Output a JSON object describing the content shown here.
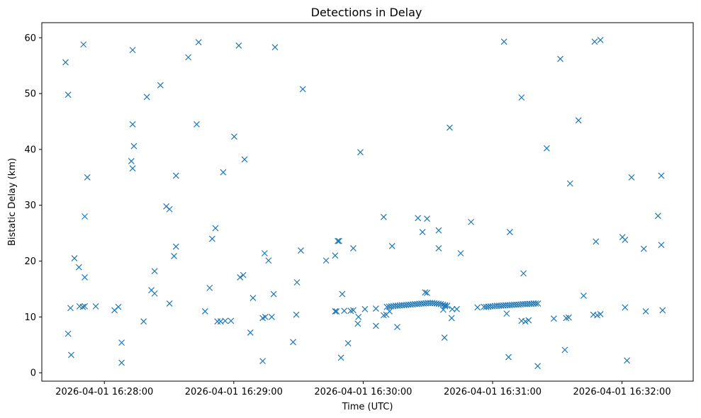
{
  "chart_data": {
    "type": "scatter",
    "title": "Detections in Delay",
    "xlabel": "Time (UTC)",
    "ylabel": "Bistatic Delay (km)",
    "x_ticks": [
      "2026-04-01 16:28:00",
      "2026-04-01 16:29:00",
      "2026-04-01 16:30:00",
      "2026-04-01 16:31:00",
      "2026-04-01 16:32:00"
    ],
    "y_ticks": [
      0,
      10,
      20,
      30,
      40,
      50,
      60
    ],
    "xlim": [
      "2026-04-01 16:27:31",
      "2026-04-01 16:32:33"
    ],
    "ylim": [
      -1.5,
      62.7
    ],
    "grid": false,
    "marker": "x",
    "color": "#1f77b4",
    "series": [
      {
        "points": [
          [
            "2026-04-01 16:27:42.0",
            55.6
          ],
          [
            "2026-04-01 16:27:43.2",
            49.8
          ],
          [
            "2026-04-01 16:27:43.2",
            7.0
          ],
          [
            "2026-04-01 16:27:44.3",
            11.6
          ],
          [
            "2026-04-01 16:27:44.6",
            3.2
          ],
          [
            "2026-04-01 16:27:46.1",
            20.5
          ],
          [
            "2026-04-01 16:27:48.2",
            18.9
          ],
          [
            "2026-04-01 16:27:48.5",
            11.9
          ],
          [
            "2026-04-01 16:27:50.0",
            11.8
          ],
          [
            "2026-04-01 16:27:50.3",
            58.8
          ],
          [
            "2026-04-01 16:27:50.9",
            11.9
          ],
          [
            "2026-04-01 16:27:50.9",
            28.0
          ],
          [
            "2026-04-01 16:27:50.9",
            17.1
          ],
          [
            "2026-04-01 16:27:52.1",
            35.0
          ],
          [
            "2026-04-01 16:27:56.0",
            11.9
          ],
          [
            "2026-04-01 16:28:04.7",
            11.2
          ],
          [
            "2026-04-01 16:28:06.5",
            11.8
          ],
          [
            "2026-04-01 16:28:08.0",
            5.4
          ],
          [
            "2026-04-01 16:28:08.0",
            1.8
          ],
          [
            "2026-04-01 16:28:13.1",
            57.8
          ],
          [
            "2026-04-01 16:28:12.5",
            37.9
          ],
          [
            "2026-04-01 16:28:13.1",
            36.6
          ],
          [
            "2026-04-01 16:28:13.1",
            44.5
          ],
          [
            "2026-04-01 16:28:13.7",
            40.6
          ],
          [
            "2026-04-01 16:28:18.2",
            9.2
          ],
          [
            "2026-04-01 16:28:19.7",
            49.4
          ],
          [
            "2026-04-01 16:28:21.8",
            14.8
          ],
          [
            "2026-04-01 16:28:23.3",
            18.2
          ],
          [
            "2026-04-01 16:28:23.3",
            14.2
          ],
          [
            "2026-04-01 16:28:26.0",
            51.5
          ],
          [
            "2026-04-01 16:28:28.7",
            29.8
          ],
          [
            "2026-04-01 16:28:30.2",
            29.3
          ],
          [
            "2026-04-01 16:28:30.2",
            12.4
          ],
          [
            "2026-04-01 16:28:32.3",
            20.9
          ],
          [
            "2026-04-01 16:28:33.2",
            22.6
          ],
          [
            "2026-04-01 16:28:33.2",
            35.3
          ],
          [
            "2026-04-01 16:28:38.9",
            56.5
          ],
          [
            "2026-04-01 16:28:42.8",
            44.5
          ],
          [
            "2026-04-01 16:28:43.7",
            59.2
          ],
          [
            "2026-04-01 16:28:46.7",
            11.0
          ],
          [
            "2026-04-01 16:28:48.8",
            15.2
          ],
          [
            "2026-04-01 16:28:50.0",
            24.0
          ],
          [
            "2026-04-01 16:28:51.5",
            25.9
          ],
          [
            "2026-04-01 16:28:52.4",
            9.2
          ],
          [
            "2026-04-01 16:28:53.9",
            9.2
          ],
          [
            "2026-04-01 16:28:55.1",
            35.9
          ],
          [
            "2026-04-01 16:28:56.0",
            9.3
          ],
          [
            "2026-04-01 16:28:58.7",
            9.3
          ],
          [
            "2026-04-01 16:29:00.2",
            42.3
          ],
          [
            "2026-04-01 16:29:02.3",
            58.6
          ],
          [
            "2026-04-01 16:29:02.9",
            17.1
          ],
          [
            "2026-04-01 16:29:04.4",
            17.5
          ],
          [
            "2026-04-01 16:29:05.0",
            38.2
          ],
          [
            "2026-04-01 16:29:07.7",
            7.2
          ],
          [
            "2026-04-01 16:29:08.9",
            13.4
          ],
          [
            "2026-04-01 16:29:13.4",
            2.1
          ],
          [
            "2026-04-01 16:29:13.4",
            9.8
          ],
          [
            "2026-04-01 16:29:14.3",
            21.4
          ],
          [
            "2026-04-01 16:29:14.6",
            10.0
          ],
          [
            "2026-04-01 16:29:16.1",
            20.1
          ],
          [
            "2026-04-01 16:29:17.6",
            10.0
          ],
          [
            "2026-04-01 16:29:18.5",
            14.1
          ],
          [
            "2026-04-01 16:29:19.1",
            58.3
          ],
          [
            "2026-04-01 16:29:27.5",
            5.5
          ],
          [
            "2026-04-01 16:29:29.3",
            16.2
          ],
          [
            "2026-04-01 16:29:29.0",
            10.4
          ],
          [
            "2026-04-01 16:29:31.1",
            21.9
          ],
          [
            "2026-04-01 16:29:32.0",
            50.8
          ],
          [
            "2026-04-01 16:29:42.8",
            20.1
          ],
          [
            "2026-04-01 16:29:47.0",
            21.0
          ],
          [
            "2026-04-01 16:29:47.0",
            11.0
          ],
          [
            "2026-04-01 16:29:47.6",
            11.0
          ],
          [
            "2026-04-01 16:29:48.2",
            23.6
          ],
          [
            "2026-04-01 16:29:48.8",
            23.6
          ],
          [
            "2026-04-01 16:29:49.7",
            2.7
          ],
          [
            "2026-04-01 16:29:50.3",
            14.1
          ],
          [
            "2026-04-01 16:29:51.2",
            11.1
          ],
          [
            "2026-04-01 16:29:53.0",
            5.3
          ],
          [
            "2026-04-01 16:29:54.2",
            11.1
          ],
          [
            "2026-04-01 16:29:55.4",
            22.3
          ],
          [
            "2026-04-01 16:29:55.4",
            11.2
          ],
          [
            "2026-04-01 16:29:57.5",
            8.8
          ],
          [
            "2026-04-01 16:29:57.8",
            10.0
          ],
          [
            "2026-04-01 16:29:58.7",
            39.5
          ],
          [
            "2026-04-01 16:30:00.8",
            11.4
          ],
          [
            "2026-04-01 16:30:05.9",
            8.4
          ],
          [
            "2026-04-01 16:30:05.9",
            11.5
          ],
          [
            "2026-04-01 16:30:09.5",
            27.9
          ],
          [
            "2026-04-01 16:30:09.5",
            10.3
          ],
          [
            "2026-04-01 16:30:10.7",
            10.4
          ],
          [
            "2026-04-01 16:30:12.2",
            11.0
          ],
          [
            "2026-04-01 16:30:13.4",
            22.7
          ],
          [
            "2026-04-01 16:30:15.8",
            8.2
          ],
          [
            "2026-04-01 16:30:25.4",
            27.7
          ],
          [
            "2026-04-01 16:30:27.5",
            25.2
          ],
          [
            "2026-04-01 16:30:29.6",
            27.6
          ],
          [
            "2026-04-01 16:30:28.7",
            14.4
          ],
          [
            "2026-04-01 16:30:29.6",
            14.3
          ],
          [
            "2026-04-01 16:30:35.0",
            25.5
          ],
          [
            "2026-04-01 16:30:35.0",
            22.3
          ],
          [
            "2026-04-01 16:30:37.1",
            11.3
          ],
          [
            "2026-04-01 16:30:37.7",
            6.3
          ],
          [
            "2026-04-01 16:30:38.0",
            11.9
          ],
          [
            "2026-04-01 16:30:40.1",
            43.9
          ],
          [
            "2026-04-01 16:30:41.0",
            9.8
          ],
          [
            "2026-04-01 16:30:41.3",
            11.4
          ],
          [
            "2026-04-01 16:30:43.4",
            11.4
          ],
          [
            "2026-04-01 16:30:45.2",
            21.4
          ],
          [
            "2026-04-01 16:30:50.0",
            27.0
          ],
          [
            "2026-04-01 16:30:53.0",
            11.7
          ],
          [
            "2026-04-01 16:30:56.0",
            11.8
          ],
          [
            "2026-04-01 16:31:05.3",
            59.3
          ],
          [
            "2026-04-01 16:31:06.5",
            10.6
          ],
          [
            "2026-04-01 16:31:07.4",
            2.8
          ],
          [
            "2026-04-01 16:31:08.0",
            25.2
          ],
          [
            "2026-04-01 16:31:13.4",
            49.3
          ],
          [
            "2026-04-01 16:31:13.4",
            9.3
          ],
          [
            "2026-04-01 16:31:14.3",
            17.8
          ],
          [
            "2026-04-01 16:31:15.2",
            9.2
          ],
          [
            "2026-04-01 16:31:16.7",
            9.4
          ],
          [
            "2026-04-01 16:31:20.9",
            1.2
          ],
          [
            "2026-04-01 16:31:25.1",
            40.2
          ],
          [
            "2026-04-01 16:31:28.4",
            9.7
          ],
          [
            "2026-04-01 16:31:31.4",
            56.2
          ],
          [
            "2026-04-01 16:31:33.5",
            4.1
          ],
          [
            "2026-04-01 16:31:34.1",
            9.8
          ],
          [
            "2026-04-01 16:31:35.3",
            9.9
          ],
          [
            "2026-04-01 16:31:35.9",
            33.9
          ],
          [
            "2026-04-01 16:31:39.8",
            45.2
          ],
          [
            "2026-04-01 16:31:42.2",
            13.8
          ],
          [
            "2026-04-01 16:31:46.7",
            10.4
          ],
          [
            "2026-04-01 16:31:47.3",
            59.3
          ],
          [
            "2026-04-01 16:31:47.9",
            23.5
          ],
          [
            "2026-04-01 16:31:48.5",
            10.3
          ],
          [
            "2026-04-01 16:31:50.0",
            10.5
          ],
          [
            "2026-04-01 16:31:50.0",
            59.6
          ],
          [
            "2026-04-01 16:32:00.2",
            24.3
          ],
          [
            "2026-04-01 16:32:01.4",
            23.8
          ],
          [
            "2026-04-01 16:32:01.4",
            11.7
          ],
          [
            "2026-04-01 16:32:02.3",
            2.2
          ],
          [
            "2026-04-01 16:32:04.4",
            35.0
          ],
          [
            "2026-04-01 16:32:10.1",
            22.2
          ],
          [
            "2026-04-01 16:32:11.0",
            11.0
          ],
          [
            "2026-04-01 16:32:16.7",
            28.1
          ],
          [
            "2026-04-01 16:32:18.2",
            22.9
          ],
          [
            "2026-04-01 16:32:18.2",
            35.3
          ],
          [
            "2026-04-01 16:32:18.8",
            11.2
          ],
          [
            "2026-04-01 16:30:11.0",
            11.8
          ],
          [
            "2026-04-01 16:30:12.0",
            11.85
          ],
          [
            "2026-04-01 16:30:13.0",
            11.9
          ],
          [
            "2026-04-01 16:30:14.0",
            11.95
          ],
          [
            "2026-04-01 16:30:15.0",
            12.0
          ],
          [
            "2026-04-01 16:30:16.0",
            12.0
          ],
          [
            "2026-04-01 16:30:17.0",
            12.05
          ],
          [
            "2026-04-01 16:30:18.0",
            12.1
          ],
          [
            "2026-04-01 16:30:19.0",
            12.1
          ],
          [
            "2026-04-01 16:30:20.0",
            12.15
          ],
          [
            "2026-04-01 16:30:21.0",
            12.2
          ],
          [
            "2026-04-01 16:30:22.0",
            12.2
          ],
          [
            "2026-04-01 16:30:23.0",
            12.25
          ],
          [
            "2026-04-01 16:30:24.0",
            12.3
          ],
          [
            "2026-04-01 16:30:25.0",
            12.3
          ],
          [
            "2026-04-01 16:30:26.0",
            12.35
          ],
          [
            "2026-04-01 16:30:27.0",
            12.4
          ],
          [
            "2026-04-01 16:30:28.0",
            12.4
          ],
          [
            "2026-04-01 16:30:29.0",
            12.45
          ],
          [
            "2026-04-01 16:30:30.0",
            12.5
          ],
          [
            "2026-04-01 16:30:31.0",
            12.5
          ],
          [
            "2026-04-01 16:30:32.0",
            12.5
          ],
          [
            "2026-04-01 16:30:33.0",
            12.45
          ],
          [
            "2026-04-01 16:30:34.0",
            12.4
          ],
          [
            "2026-04-01 16:30:35.0",
            12.35
          ],
          [
            "2026-04-01 16:30:36.0",
            12.3
          ],
          [
            "2026-04-01 16:30:37.0",
            12.2
          ],
          [
            "2026-04-01 16:30:38.0",
            12.1
          ],
          [
            "2026-04-01 16:30:39.0",
            12.0
          ],
          [
            "2026-04-01 16:30:57.0",
            11.8
          ],
          [
            "2026-04-01 16:30:58.0",
            11.85
          ],
          [
            "2026-04-01 16:30:59.0",
            11.9
          ],
          [
            "2026-04-01 16:31:00.0",
            11.9
          ],
          [
            "2026-04-01 16:31:01.0",
            11.95
          ],
          [
            "2026-04-01 16:31:02.0",
            12.0
          ],
          [
            "2026-04-01 16:31:03.0",
            12.0
          ],
          [
            "2026-04-01 16:31:04.0",
            12.0
          ],
          [
            "2026-04-01 16:31:05.0",
            12.05
          ],
          [
            "2026-04-01 16:31:06.0",
            12.1
          ],
          [
            "2026-04-01 16:31:07.0",
            12.1
          ],
          [
            "2026-04-01 16:31:08.0",
            12.1
          ],
          [
            "2026-04-01 16:31:09.0",
            12.15
          ],
          [
            "2026-04-01 16:31:10.0",
            12.2
          ],
          [
            "2026-04-01 16:31:11.0",
            12.2
          ],
          [
            "2026-04-01 16:31:12.0",
            12.2
          ],
          [
            "2026-04-01 16:31:13.0",
            12.25
          ],
          [
            "2026-04-01 16:31:14.0",
            12.3
          ],
          [
            "2026-04-01 16:31:15.0",
            12.3
          ],
          [
            "2026-04-01 16:31:16.0",
            12.3
          ],
          [
            "2026-04-01 16:31:17.0",
            12.35
          ],
          [
            "2026-04-01 16:31:18.0",
            12.35
          ],
          [
            "2026-04-01 16:31:19.0",
            12.4
          ],
          [
            "2026-04-01 16:31:20.0",
            12.4
          ],
          [
            "2026-04-01 16:31:21.0",
            12.4
          ]
        ]
      }
    ]
  }
}
